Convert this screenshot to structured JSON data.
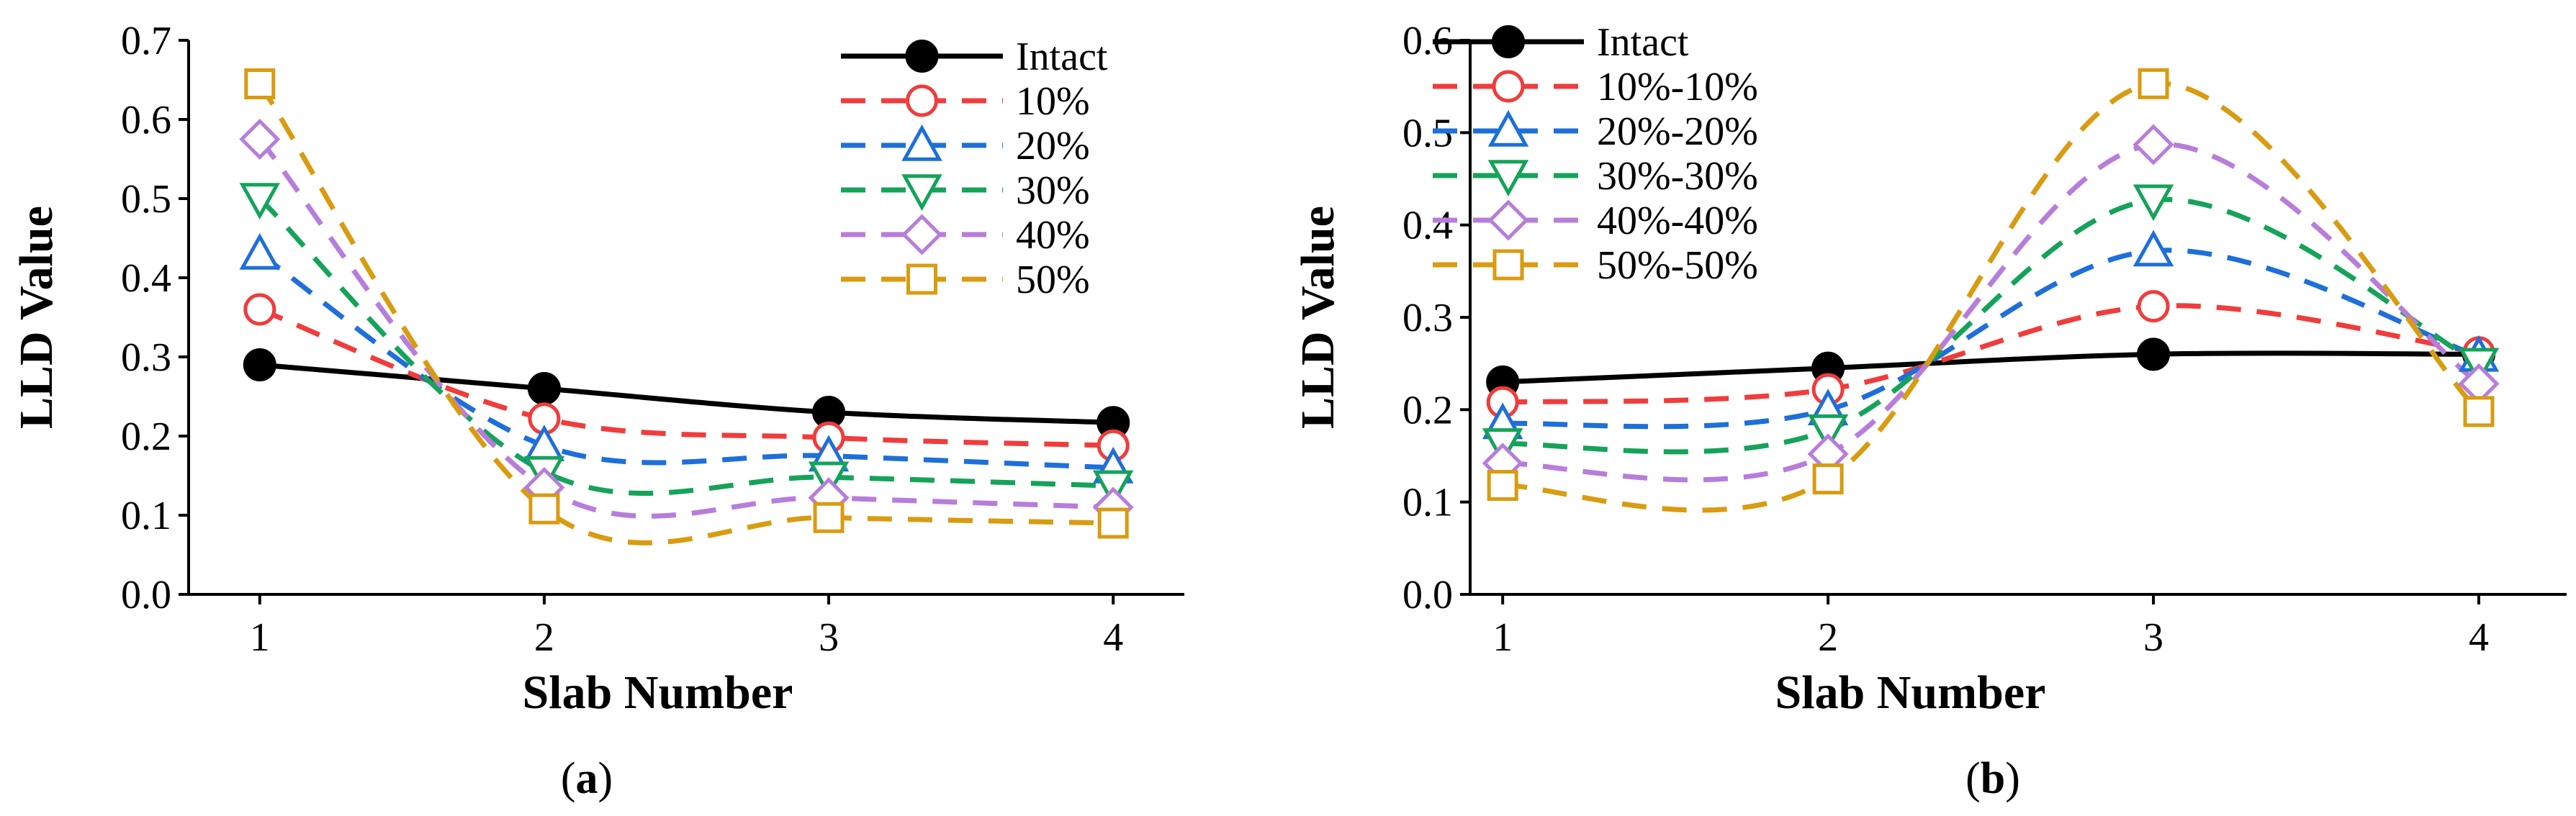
{
  "chart_data": [
    {
      "type": "line",
      "title": "",
      "caption": "(a)",
      "caption_letter": "a",
      "xlabel": "Slab Number",
      "ylabel": "LLD Value",
      "x": [
        1,
        2,
        3,
        4
      ],
      "xlim": [
        0.75,
        4.25
      ],
      "ylim": [
        0.0,
        0.7
      ],
      "yticks": [
        "0.0",
        "0.1",
        "0.2",
        "0.3",
        "0.4",
        "0.5",
        "0.6",
        "0.7"
      ],
      "xticks": [
        "1",
        "2",
        "3",
        "4"
      ],
      "legend_position": "top-right",
      "series": [
        {
          "name": "Intact",
          "values": [
            0.29,
            0.26,
            0.23,
            0.217
          ],
          "color": "#000000",
          "marker": "filled-circle",
          "dash": "solid"
        },
        {
          "name": "10%",
          "values": [
            0.36,
            0.222,
            0.198,
            0.188
          ],
          "color": "#f03c3c",
          "marker": "circle",
          "dash": "dashed"
        },
        {
          "name": "20%",
          "values": [
            0.43,
            0.188,
            0.175,
            0.16
          ],
          "color": "#1e6fd9",
          "marker": "triangle-up",
          "dash": "dashed"
        },
        {
          "name": "30%",
          "values": [
            0.5,
            0.155,
            0.148,
            0.137
          ],
          "color": "#15a35a",
          "marker": "triangle-down",
          "dash": "dashed"
        },
        {
          "name": "40%",
          "values": [
            0.575,
            0.135,
            0.122,
            0.11
          ],
          "color": "#b77ddb",
          "marker": "diamond",
          "dash": "dashed"
        },
        {
          "name": "50%",
          "values": [
            0.645,
            0.108,
            0.097,
            0.09
          ],
          "color": "#d99b10",
          "marker": "square",
          "dash": "dashed"
        }
      ]
    },
    {
      "type": "line",
      "title": "",
      "caption": "(b)",
      "caption_letter": "b",
      "xlabel": "Slab Number",
      "ylabel": "LLD Value",
      "x": [
        1,
        2,
        3,
        4
      ],
      "xlim": [
        0.9,
        4.27
      ],
      "ylim": [
        0.0,
        0.6
      ],
      "yticks": [
        "0.0",
        "0.1",
        "0.2",
        "0.3",
        "0.4",
        "0.5",
        "0.6"
      ],
      "xticks": [
        "1",
        "2",
        "3",
        "4"
      ],
      "legend_position": "top-left",
      "series": [
        {
          "name": "Intact",
          "values": [
            0.23,
            0.245,
            0.26,
            0.26
          ],
          "color": "#000000",
          "marker": "filled-circle",
          "dash": "solid"
        },
        {
          "name": "10%-10%",
          "values": [
            0.208,
            0.222,
            0.312,
            0.262
          ],
          "color": "#f03c3c",
          "marker": "circle",
          "dash": "dashed"
        },
        {
          "name": "20%-20%",
          "values": [
            0.185,
            0.2,
            0.372,
            0.258
          ],
          "color": "#1e6fd9",
          "marker": "triangle-up",
          "dash": "dashed"
        },
        {
          "name": "30%-30%",
          "values": [
            0.163,
            0.178,
            0.427,
            0.25
          ],
          "color": "#15a35a",
          "marker": "triangle-down",
          "dash": "dashed"
        },
        {
          "name": "40%-40%",
          "values": [
            0.142,
            0.152,
            0.487,
            0.228
          ],
          "color": "#b77ddb",
          "marker": "diamond",
          "dash": "dashed"
        },
        {
          "name": "50%-50%",
          "values": [
            0.118,
            0.125,
            0.553,
            0.198
          ],
          "color": "#d99b10",
          "marker": "square",
          "dash": "dashed"
        }
      ]
    }
  ]
}
